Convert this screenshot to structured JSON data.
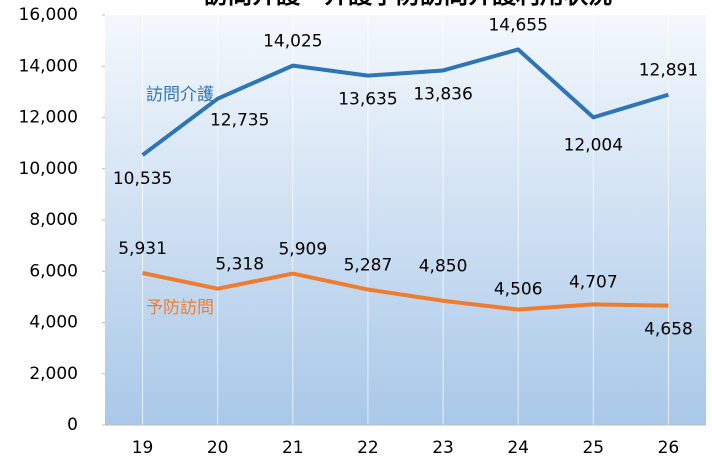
{
  "chart_data": {
    "type": "line",
    "title": "訪問介護・介護予防訪問介護利用状況",
    "categories": [
      "19",
      "20",
      "21",
      "22",
      "23",
      "24",
      "25",
      "26"
    ],
    "series": [
      {
        "name": "訪問介護",
        "color": "#2e75b6",
        "values": [
          10535,
          12735,
          14025,
          13635,
          13836,
          14655,
          12004,
          12891
        ],
        "value_labels": [
          "10,535",
          "12,735",
          "14,025",
          "13,635",
          "13,836",
          "14,655",
          "12,004",
          "12,891"
        ]
      },
      {
        "name": "予防訪問",
        "color": "#ed7d31",
        "values": [
          5931,
          5318,
          5909,
          5287,
          4850,
          4506,
          4707,
          4658
        ],
        "value_labels": [
          "5,931",
          "5,318",
          "5,909",
          "5,287",
          "4,850",
          "4,506",
          "4,707",
          "4,658"
        ]
      }
    ],
    "ylim": [
      0,
      16000
    ],
    "yticks": [
      0,
      {
        "value": 2000,
        "label": "2,000"
      },
      {
        "value": 4000,
        "label": "4,000"
      },
      {
        "value": 6000,
        "label": "6,000"
      },
      {
        "value": 8000,
        "label": "8,000"
      },
      {
        "value": 10000,
        "label": "10,000"
      },
      {
        "value": 12000,
        "label": "12,000"
      },
      {
        "value": 14000,
        "label": "14,000"
      },
      {
        "value": 16000,
        "label": "16,000"
      }
    ],
    "grid": true
  }
}
